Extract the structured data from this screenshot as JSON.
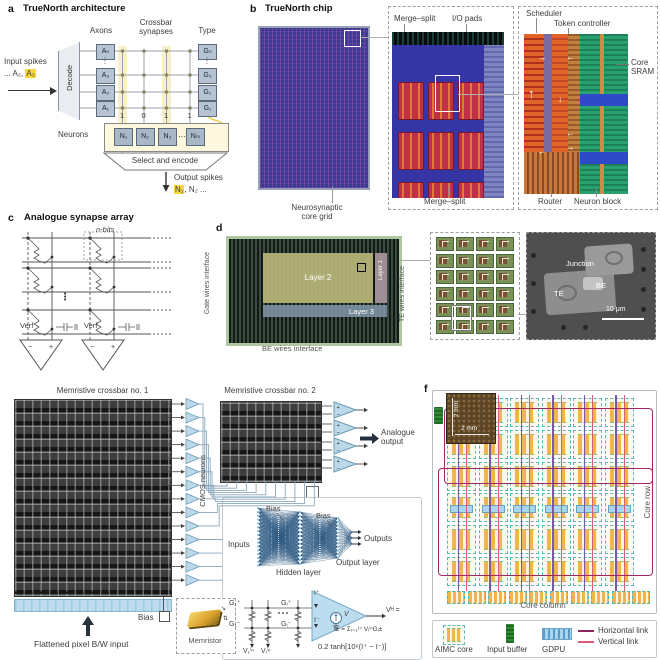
{
  "panel_a": {
    "label": "a",
    "title": "TrueNorth architecture",
    "axons_header": "Axons",
    "crossbar_header": "Crossbar synapses",
    "type_header": "Type",
    "input_line1": "Input spikes",
    "input_prefix": "... A₂, ",
    "input_hl": "A₃",
    "decode": "Decode",
    "axons": [
      "Aₙ",
      "A₃",
      "A₂",
      "A₁"
    ],
    "types": [
      "Gₙ",
      "G₃",
      "G₂",
      "G₁"
    ],
    "weights": [
      "1",
      "0",
      "1",
      "1"
    ],
    "dots_v": "⋮",
    "dots_h": "⋯",
    "neurons_label": "Neurons",
    "neurons": [
      "N₁",
      "N₂",
      "N₃",
      "Nₘ"
    ],
    "select_encode": "Select and encode",
    "output_line1": "Output spikes",
    "output_hl": "N₁",
    "output_rest": ", N₂ ..."
  },
  "panel_b": {
    "label": "b",
    "title": "TrueNorth chip",
    "merge_split_top": "Merge–split",
    "io_pads": "I/O pads",
    "merge_split_bottom": "Merge–split",
    "core_grid_l1": "Neurosynaptic",
    "core_grid_l2": "core grid",
    "scheduler": "Scheduler",
    "token_controller": "Token controller",
    "core_sram": "Core SRAM",
    "router": "Router",
    "neuron_block": "Neuron block"
  },
  "panel_c": {
    "label": "c",
    "title": "Analogue synapse array",
    "n_bits": "n-bits",
    "vref": "Verf",
    "plus": "+",
    "minus": "−"
  },
  "panel_d": {
    "label": "d",
    "gate_wires": "Gate wires interface",
    "layer1": "Layer 1",
    "layer2": "Layer 2",
    "layer3": "Layer 3",
    "be_wires": "BE wires interface",
    "te_wires": "TE wires interface",
    "junction": "Junction",
    "te": "TE",
    "be": "BE",
    "scale_bar": "10 μm"
  },
  "panel_e": {
    "crossbar1_title": "Memristive crossbar no. 1",
    "crossbar2_title": "Memristive crossbar no. 2",
    "cmos_neurons": "CMOS neurons",
    "analogue_output": "Analogue output",
    "bias": "Bias",
    "inputs": "Inputs",
    "outputs": "Outputs",
    "hidden_layer": "Hidden layer",
    "output_layer": "Output layer",
    "flattened_input": "Flattened pixel B/W input",
    "memristor": "Memristor",
    "g1p": "G₁⁺",
    "gip": "Gᵢ⁺",
    "g1m": "G₁⁻",
    "gim": "Gᵢ⁻",
    "v1in": "V₁ⁱⁿ",
    "viin": "Vᵢⁱⁿ",
    "i_plus": "I⁺",
    "i_minus": "I⁻",
    "v_source": "V",
    "vh_eq": "Vᴴ =",
    "sum_formula": "I± = Σᵢ₌₁¹⁷ VᵢⁱⁿGᵢ±",
    "tanh_formula": "0.2 tanh[10⁶(I⁺ − I⁻)]"
  },
  "panel_f": {
    "label": "f",
    "dim_v": "2 mm",
    "dim_h": "2 mm",
    "core_row": "Core row",
    "core_column": "Core column",
    "legend": {
      "aimc_core": "AIMC core",
      "input_buffer": "Input buffer",
      "gdpu": "GDPU",
      "horizontal_link": "Horizontal link",
      "vertical_link": "Vertical link"
    }
  },
  "colors": {
    "highlight": "#f6d73c",
    "triangle": "#bcd9ea",
    "box_blue": "#b7c3d3",
    "chip_blue": "#3c3c92",
    "magenta": "#a12766",
    "pink": "#e0587a",
    "purple": "#7e57a6",
    "green_buffer": "#2f8a31",
    "gdpu_blue": "#a9d6ee"
  }
}
